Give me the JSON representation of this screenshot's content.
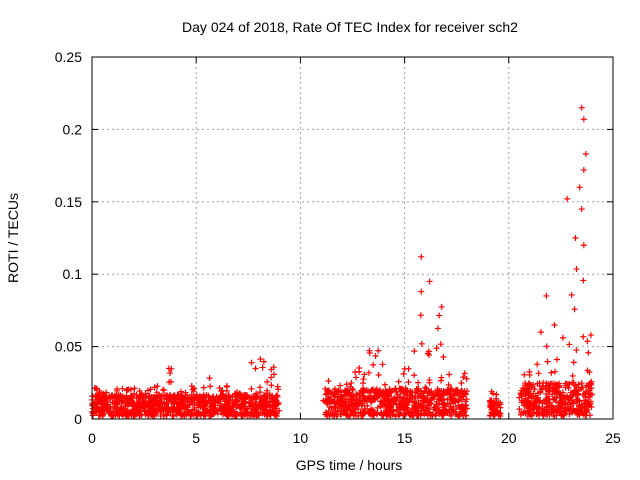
{
  "chart_data": {
    "type": "scatter",
    "title": "Day 024 of 2018, Rate Of TEC Index for receiver sch2",
    "xlabel": "GPS time / hours",
    "ylabel": "ROTI / TECUs",
    "xlim": [
      0,
      25
    ],
    "ylim": [
      0,
      0.25
    ],
    "xticks": [
      0,
      5,
      10,
      15,
      20,
      25
    ],
    "xtick_labels": [
      "0",
      "5",
      "10",
      "15",
      "20",
      "25"
    ],
    "yticks": [
      0,
      0.05,
      0.1,
      0.15,
      0.2,
      0.25
    ],
    "ytick_labels": [
      "0",
      "0.05",
      "0.1",
      "0.15",
      "0.2",
      "0.25"
    ],
    "grid": true,
    "marker": "+",
    "series": [
      {
        "name": "ROTI",
        "color": "#ff0000",
        "segments": [
          {
            "x_start": 0.0,
            "x_end": 9.0,
            "y_min": 0.002,
            "y_max": 0.045,
            "typical": 0.012
          },
          {
            "x_start": 11.1,
            "x_end": 18.0,
            "y_min": 0.002,
            "y_max": 0.112,
            "typical": 0.015
          },
          {
            "x_start": 19.1,
            "x_end": 19.6,
            "y_min": 0.002,
            "y_max": 0.028,
            "typical": 0.01
          },
          {
            "x_start": 20.5,
            "x_end": 24.0,
            "y_min": 0.002,
            "y_max": 0.215,
            "typical": 0.018
          }
        ],
        "notable_points": [
          {
            "x": 15.8,
            "y": 0.112
          },
          {
            "x": 16.2,
            "y": 0.095
          },
          {
            "x": 15.8,
            "y": 0.088
          },
          {
            "x": 21.8,
            "y": 0.085
          },
          {
            "x": 22.8,
            "y": 0.152
          },
          {
            "x": 23.2,
            "y": 0.125
          },
          {
            "x": 23.5,
            "y": 0.215
          },
          {
            "x": 23.6,
            "y": 0.207
          },
          {
            "x": 23.7,
            "y": 0.183
          },
          {
            "x": 23.6,
            "y": 0.172
          },
          {
            "x": 23.4,
            "y": 0.16
          },
          {
            "x": 23.5,
            "y": 0.145
          },
          {
            "x": 23.6,
            "y": 0.12
          }
        ]
      }
    ]
  }
}
